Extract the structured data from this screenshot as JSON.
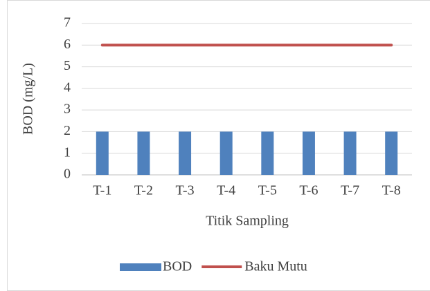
{
  "chart_data": {
    "type": "bar",
    "x_label": "Titik Sampling",
    "y_label": "BOD (mg/L)",
    "categories": [
      "T-1",
      "T-2",
      "T-3",
      "T-4",
      "T-5",
      "T-6",
      "T-7",
      "T-8"
    ],
    "series": [
      {
        "name": "BOD",
        "type": "bar",
        "color": "#4f81bd",
        "values": [
          2,
          2,
          2,
          2,
          2,
          2,
          2,
          2
        ]
      },
      {
        "name": "Baku Mutu",
        "type": "line",
        "color": "#c0504d",
        "values": [
          6,
          6,
          6,
          6,
          6,
          6,
          6,
          6
        ]
      }
    ],
    "ylim": [
      0,
      7
    ],
    "yticks": [
      0,
      1,
      2,
      3,
      4,
      5,
      6,
      7
    ],
    "grid": true,
    "legend": "bottom"
  }
}
